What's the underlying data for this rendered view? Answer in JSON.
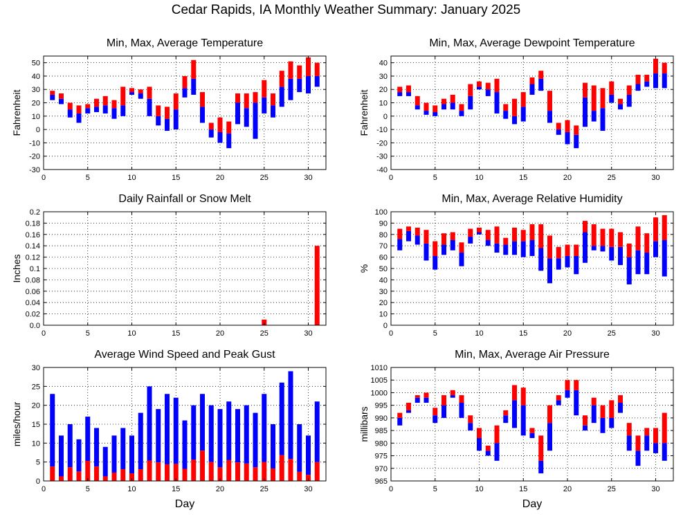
{
  "page": {
    "title": "Cedar Rapids, IA Monthly Weather Summary: January 2025"
  },
  "colors": {
    "min_segment": "#0000ff",
    "max_segment": "#ff0000",
    "outline": "#000000"
  },
  "chart_data": [
    {
      "id": "temperature",
      "type": "bar",
      "title": "Min, Max, Average Temperature",
      "xlabel": "",
      "ylabel": "Fahrenheit",
      "xlim": [
        0,
        32
      ],
      "ylim": [
        -30,
        55
      ],
      "xticks": [
        0,
        5,
        10,
        15,
        20,
        25,
        30
      ],
      "yticks": [
        -30,
        -20,
        -10,
        0,
        10,
        20,
        30,
        40,
        50
      ],
      "grid": true,
      "days": [
        1,
        2,
        3,
        4,
        5,
        6,
        7,
        8,
        9,
        10,
        11,
        12,
        13,
        14,
        15,
        16,
        17,
        18,
        19,
        20,
        21,
        22,
        23,
        24,
        25,
        26,
        27,
        28,
        29,
        30,
        31
      ],
      "min": [
        22,
        19,
        9,
        5,
        12,
        13,
        12,
        8,
        10,
        26,
        23,
        10,
        3,
        -1,
        0,
        24,
        26,
        5,
        -6,
        -10,
        -14,
        4,
        2,
        -7,
        12,
        9,
        17,
        22,
        28,
        27,
        32
      ],
      "avg": [
        26,
        23,
        15,
        12,
        16,
        17,
        18,
        16,
        18,
        28,
        27,
        23,
        10,
        8,
        15,
        31,
        38,
        17,
        0,
        -2,
        -3,
        20,
        16,
        20,
        24,
        18,
        32,
        38,
        38,
        40,
        40
      ],
      "max": [
        29,
        27,
        20,
        18,
        19,
        23,
        25,
        22,
        32,
        31,
        30,
        32,
        18,
        17,
        27,
        40,
        52,
        28,
        5,
        9,
        6,
        27,
        27,
        28,
        37,
        27,
        44,
        51,
        48,
        54,
        50
      ]
    },
    {
      "id": "dewpoint",
      "type": "bar",
      "title": "Min, Max, Average Dewpoint Temperature",
      "xlabel": "",
      "ylabel": "Fahrenheit",
      "xlim": [
        0,
        32
      ],
      "ylim": [
        -40,
        45
      ],
      "xticks": [
        0,
        5,
        10,
        15,
        20,
        25,
        30
      ],
      "yticks": [
        -40,
        -30,
        -20,
        -10,
        0,
        10,
        20,
        30,
        40
      ],
      "grid": true,
      "days": [
        1,
        2,
        3,
        4,
        5,
        6,
        7,
        8,
        9,
        10,
        11,
        12,
        13,
        14,
        15,
        16,
        17,
        18,
        19,
        20,
        21,
        22,
        23,
        24,
        25,
        26,
        27,
        28,
        29,
        30,
        31
      ],
      "min": [
        15,
        15,
        5,
        1,
        0,
        5,
        5,
        0,
        5,
        20,
        15,
        2,
        -2,
        -6,
        -4,
        16,
        19,
        -5,
        -14,
        -21,
        -24,
        -8,
        -4,
        -11,
        10,
        5,
        7,
        19,
        22,
        21,
        21
      ],
      "avg": [
        18,
        18,
        8,
        4,
        3,
        9,
        10,
        4,
        15,
        22,
        20,
        18,
        4,
        0,
        7,
        24,
        28,
        4,
        -10,
        -12,
        -14,
        14,
        4,
        6,
        16,
        9,
        16,
        24,
        26,
        32,
        32
      ],
      "max": [
        22,
        23,
        15,
        10,
        8,
        13,
        16,
        9,
        24,
        26,
        25,
        28,
        9,
        13,
        18,
        29,
        34,
        19,
        -5,
        -3,
        -7,
        25,
        23,
        21,
        26,
        13,
        23,
        31,
        31,
        43,
        40
      ]
    },
    {
      "id": "rainfall",
      "type": "bar",
      "title": "Daily Rainfall or Snow Melt",
      "xlabel": "",
      "ylabel": "Inches",
      "xlim": [
        0,
        32
      ],
      "ylim": [
        0,
        0.2
      ],
      "xticks": [
        0,
        5,
        10,
        15,
        20,
        25,
        30
      ],
      "yticks": [
        0,
        0.02,
        0.04,
        0.06,
        0.08,
        0.1,
        0.12,
        0.14,
        0.16,
        0.18,
        0.2
      ],
      "ytick_labels": [
        "0.0",
        "0.02",
        "0.04",
        "0.06",
        "0.08",
        "0.1",
        "0.12",
        "0.14",
        "0.16",
        "0.18",
        "0.2"
      ],
      "grid": true,
      "days": [
        25,
        31
      ],
      "values": [
        0.01,
        0.14
      ]
    },
    {
      "id": "humidity",
      "type": "bar",
      "title": "Min, Max, Average Relative Humidity",
      "xlabel": "",
      "ylabel": "%",
      "xlim": [
        0,
        32
      ],
      "ylim": [
        0,
        100
      ],
      "xticks": [
        0,
        5,
        10,
        15,
        20,
        25,
        30
      ],
      "yticks": [
        0,
        10,
        20,
        30,
        40,
        50,
        60,
        70,
        80,
        90,
        100
      ],
      "grid": true,
      "days": [
        1,
        2,
        3,
        4,
        5,
        6,
        7,
        8,
        9,
        10,
        11,
        12,
        13,
        14,
        15,
        16,
        17,
        18,
        19,
        20,
        21,
        22,
        23,
        24,
        25,
        26,
        27,
        28,
        29,
        30,
        31
      ],
      "min": [
        66,
        74,
        71,
        57,
        49,
        62,
        66,
        52,
        72,
        80,
        70,
        64,
        62,
        62,
        60,
        61,
        48,
        37,
        49,
        51,
        45,
        55,
        66,
        65,
        57,
        53,
        36,
        45,
        45,
        60,
        43
      ],
      "avg": [
        76,
        83,
        79,
        72,
        61,
        71,
        75,
        64,
        78,
        82,
        75,
        72,
        71,
        74,
        74,
        75,
        68,
        59,
        59,
        61,
        61,
        82,
        70,
        70,
        69,
        69,
        60,
        66,
        64,
        74,
        75
      ],
      "max": [
        85,
        87,
        86,
        84,
        74,
        81,
        82,
        73,
        85,
        86,
        84,
        87,
        77,
        86,
        84,
        89,
        89,
        79,
        69,
        71,
        71,
        92,
        89,
        85,
        85,
        82,
        72,
        87,
        81,
        95,
        97
      ]
    },
    {
      "id": "wind",
      "type": "bar",
      "title": "Average Wind Speed and Peak Gust",
      "xlabel": "Day",
      "ylabel": "miles/hour",
      "xlim": [
        0,
        32
      ],
      "ylim": [
        0,
        30
      ],
      "xticks": [
        0,
        5,
        10,
        15,
        20,
        25,
        30
      ],
      "yticks": [
        0,
        5,
        10,
        15,
        20,
        25,
        30
      ],
      "grid": true,
      "days": [
        1,
        2,
        3,
        4,
        5,
        6,
        7,
        8,
        9,
        10,
        11,
        12,
        13,
        14,
        15,
        16,
        17,
        18,
        19,
        20,
        21,
        22,
        23,
        24,
        25,
        26,
        27,
        28,
        29,
        30,
        31
      ],
      "avg_speed": [
        3.8,
        1.2,
        3.6,
        2.5,
        5.3,
        3.8,
        1.2,
        2.2,
        3.1,
        2.0,
        3.1,
        5.4,
        4.9,
        4.4,
        4.5,
        3.2,
        5.6,
        8.0,
        5.0,
        3.6,
        5.5,
        4.9,
        4.6,
        3.6,
        5.0,
        3.3,
        6.8,
        5.8,
        2.4,
        1.6,
        5.0
      ],
      "peak_gust": [
        23,
        12,
        15,
        11,
        17,
        14,
        9,
        12,
        14,
        12,
        18,
        25,
        19,
        23,
        22,
        16,
        20,
        23,
        20,
        19,
        21,
        19,
        20,
        18,
        23,
        15,
        26,
        29,
        15,
        12,
        21
      ]
    },
    {
      "id": "pressure",
      "type": "bar",
      "title": "Min, Max, Average Air Pressure",
      "xlabel": "Day",
      "ylabel": "millibars",
      "xlim": [
        0,
        32
      ],
      "ylim": [
        965,
        1010
      ],
      "xticks": [
        0,
        5,
        10,
        15,
        20,
        25,
        30
      ],
      "yticks": [
        965,
        970,
        975,
        980,
        985,
        990,
        995,
        1000,
        1005,
        1010
      ],
      "grid": true,
      "days": [
        1,
        2,
        3,
        4,
        5,
        6,
        7,
        8,
        9,
        10,
        11,
        12,
        13,
        14,
        15,
        16,
        17,
        18,
        19,
        20,
        21,
        22,
        23,
        24,
        25,
        26,
        27,
        28,
        29,
        30,
        31
      ],
      "min": [
        987,
        992,
        996,
        996,
        988,
        990,
        998,
        990,
        985,
        977,
        975,
        973,
        988,
        986,
        983,
        982,
        968,
        977,
        995,
        998,
        991,
        985,
        988,
        984,
        986,
        992,
        977,
        971,
        977,
        976,
        973
      ],
      "avg": [
        990,
        993,
        998,
        998,
        991,
        995,
        999,
        996,
        988,
        982,
        977,
        980,
        991,
        997,
        995,
        984,
        973,
        988,
        997,
        1001,
        1001,
        987,
        995,
        990,
        990,
        996,
        983,
        977,
        983,
        980,
        980
      ],
      "max": [
        992,
        996,
        999,
        1000,
        994,
        999,
        1001,
        999,
        991,
        986,
        979,
        987,
        993,
        1003,
        1002,
        986,
        983,
        995,
        999,
        1005,
        1005,
        991,
        998,
        995,
        997,
        999,
        988,
        983,
        986,
        986,
        992
      ]
    }
  ]
}
